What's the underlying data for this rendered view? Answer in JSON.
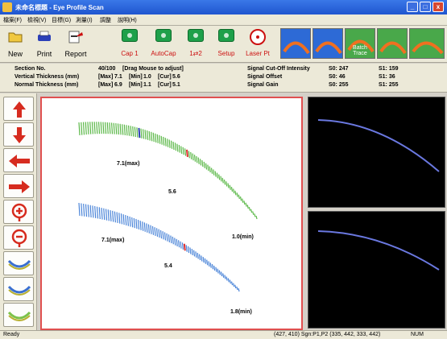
{
  "window": {
    "title": "未命名標題 - Eye Profile Scan",
    "min": "_",
    "max": "□",
    "close": "x"
  },
  "menu": [
    "檔案(F)",
    "檢視(V)",
    "目標(G)",
    "測量(I)",
    "調整",
    "說明(H)"
  ],
  "toolbar": {
    "new": "New",
    "print": "Print",
    "report": "Report",
    "cap1": "Cap 1",
    "autocap": "AutoCap",
    "swap": "1⇄2",
    "setup": "Setup",
    "laser": "Laser Pt",
    "profiles": [
      "",
      "",
      "Batch Trace",
      "",
      ""
    ]
  },
  "info": {
    "section_label": "Section No.",
    "section_value": "40/100",
    "drag_hint": "[Drag Mouse to adjust]",
    "vertical_label": "Vertical Thickness (mm)",
    "normal_label": "Normal Thickness (mm)",
    "max_tag": "[Max]",
    "min_tag": "[Min]",
    "cur_tag": "[Cur]",
    "vertical": {
      "max": "7.1",
      "min": "1.0",
      "cur": "5.6"
    },
    "normal": {
      "max": "6.9",
      "min": "1.1",
      "cur": "5.1"
    },
    "cutoff_label": "Signal Cut-Off Intensity",
    "offset_label": "Signal Offset",
    "gain_label": "Signal Gain",
    "cutoff": {
      "s0": "S0: 247",
      "s1": "S1: 159"
    },
    "offset": {
      "s0": "S0: 46",
      "s1": "S1: 36"
    },
    "gain": {
      "s0": "S0: 255",
      "s1": "S1: 255"
    }
  },
  "sidebar": [
    "move-up",
    "move-down",
    "move-left",
    "move-right",
    "zoom-in",
    "zoom-out",
    "profile-style-1",
    "profile-style-2",
    "profile-style-3"
  ],
  "canvas": {
    "top_max": "7.1(max)",
    "top_cur": "5.6",
    "top_min": "1.0(min)",
    "bottom_max": "7.1(max)",
    "bottom_cur": "5.4",
    "bottom_min": "1.8(min)",
    "green": "#5bb848",
    "blue": "#4a84d8",
    "red": "#e03030"
  },
  "status": {
    "ready": "Ready",
    "coords": "(427, 410) Sgn:P1,P2 (335, 442, 333, 442)",
    "mode": "NUM"
  }
}
